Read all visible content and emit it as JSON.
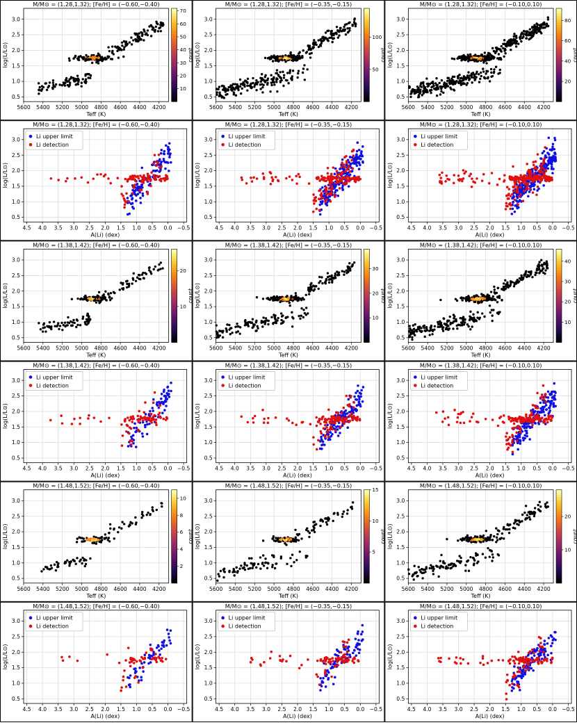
{
  "figure": {
    "rows": [
      {
        "kind": "hr",
        "mass": "1.28,1.32"
      },
      {
        "kind": "li",
        "mass": "1.28,1.32"
      },
      {
        "kind": "hr",
        "mass": "1.38,1.42"
      },
      {
        "kind": "li",
        "mass": "1.38,1.42"
      },
      {
        "kind": "hr",
        "mass": "1.48,1.52"
      },
      {
        "kind": "li",
        "mass": "1.48,1.52"
      }
    ],
    "metallicity_bins": [
      "-0.60,-0.40",
      "-0.35,-0.15",
      "-0.10,0.10"
    ],
    "title_template": "M/M⊙ = ({mass}); [Fe/H] = ({feh})",
    "ylabel": "log(L/L⊙)",
    "xlabel_teff": "Teff (K)",
    "xlabel_li": "A(Li) (dex)",
    "colorbar_label": "count",
    "legend": [
      "Li upper limit",
      "Li detection"
    ],
    "colors": {
      "upper_limit": "#1010e0",
      "detection": "#e01010",
      "hr_point": "#000000",
      "grid": "#d9d9d9"
    },
    "colormap": "inferno"
  },
  "chart_data": [
    {
      "type": "scatter",
      "panel": "r1c1",
      "title": "M/M⊙ = (1.28,1.32); [Fe/H] = (−0.60,−0.40)",
      "xlabel": "Teff (K)",
      "ylabel": "log(L/L⊙)",
      "xlim": [
        5600,
        4100
      ],
      "ylim": [
        0.35,
        3.35
      ],
      "x_ticks": [
        5600,
        5400,
        5200,
        5000,
        4800,
        4600,
        4400,
        4200
      ],
      "y_ticks": [
        0.5,
        1.0,
        1.5,
        2.0,
        2.5,
        3.0
      ],
      "colorbar": {
        "label": "count",
        "ticks": [
          10,
          20,
          30,
          40,
          50,
          60,
          70
        ],
        "max": 72
      }
    },
    {
      "type": "scatter",
      "panel": "r1c2",
      "title": "M/M⊙ = (1.28,1.32); [Fe/H] = (−0.35,−0.15)",
      "xlabel": "Teff (K)",
      "ylabel": "log(L/L⊙)",
      "xlim": [
        5600,
        4100
      ],
      "ylim": [
        0.35,
        3.35
      ],
      "x_ticks": [
        5600,
        5400,
        5200,
        5000,
        4800,
        4600,
        4400,
        4200
      ],
      "y_ticks": [
        0.5,
        1.0,
        1.5,
        2.0,
        2.5,
        3.0
      ],
      "colorbar": {
        "label": "count",
        "ticks": [
          50,
          100
        ],
        "max": 145
      }
    },
    {
      "type": "scatter",
      "panel": "r1c3",
      "title": "M/M⊙ = (1.28,1.32); [Fe/H] = (−0.10,0.10)",
      "xlabel": "Teff (K)",
      "ylabel": "log(L/L⊙)",
      "xlim": [
        5600,
        4100
      ],
      "ylim": [
        0.35,
        3.35
      ],
      "x_ticks": [
        5600,
        5400,
        5200,
        5000,
        4800,
        4600,
        4400,
        4200
      ],
      "y_ticks": [
        0.5,
        1.0,
        1.5,
        2.0,
        2.5,
        3.0
      ],
      "colorbar": {
        "label": "count",
        "ticks": [
          20,
          40,
          60,
          80
        ],
        "max": 92
      }
    },
    {
      "type": "scatter",
      "panel": "r2c1",
      "title": "M/M⊙ = (1.28,1.32); [Fe/H] = (−0.60,−0.40)",
      "xlabel": "A(Li) (dex)",
      "ylabel": "log(L/L⊙)",
      "xlim": [
        4.6,
        -0.6
      ],
      "ylim": [
        0.35,
        3.35
      ],
      "x_ticks": [
        4.5,
        4.0,
        3.5,
        3.0,
        2.5,
        2.0,
        1.5,
        1.0,
        0.5,
        0.0,
        -0.5
      ],
      "y_ticks": [
        0.5,
        1.0,
        1.5,
        2.0,
        2.5,
        3.0
      ],
      "legend": [
        "Li upper limit",
        "Li detection"
      ]
    },
    {
      "type": "scatter",
      "panel": "r2c2",
      "title": "M/M⊙ = (1.28,1.32); [Fe/H] = (−0.35,−0.15)",
      "xlabel": "A(Li) (dex)",
      "ylabel": "log(L/L⊙)",
      "xlim": [
        4.6,
        -0.6
      ],
      "ylim": [
        0.35,
        3.35
      ],
      "x_ticks": [
        4.5,
        4.0,
        3.5,
        3.0,
        2.5,
        2.0,
        1.5,
        1.0,
        0.5,
        0.0,
        -0.5
      ],
      "y_ticks": [
        0.5,
        1.0,
        1.5,
        2.0,
        2.5,
        3.0
      ],
      "legend": [
        "Li upper limit",
        "Li detection"
      ]
    },
    {
      "type": "scatter",
      "panel": "r2c3",
      "title": "M/M⊙ = (1.28,1.32); [Fe/H] = (−0.10,0.10)",
      "xlabel": "A(Li) (dex)",
      "ylabel": "log(L/L⊙)",
      "xlim": [
        4.6,
        -0.6
      ],
      "ylim": [
        0.35,
        3.35
      ],
      "x_ticks": [
        4.5,
        4.0,
        3.5,
        3.0,
        2.5,
        2.0,
        1.5,
        1.0,
        0.5,
        0.0,
        -0.5
      ],
      "y_ticks": [
        0.5,
        1.0,
        1.5,
        2.0,
        2.5,
        3.0
      ],
      "legend": [
        "Li upper limit",
        "Li detection"
      ]
    },
    {
      "type": "scatter",
      "panel": "r3c1",
      "title": "M/M⊙ = (1.38,1.42); [Fe/H] = (−0.60,−0.40)",
      "xlabel": "Teff (K)",
      "ylabel": "log(L/L⊙)",
      "xlim": [
        5600,
        4100
      ],
      "ylim": [
        0.35,
        3.35
      ],
      "x_ticks": [
        5600,
        5400,
        5200,
        5000,
        4800,
        4600,
        4400,
        4200
      ],
      "y_ticks": [
        0.5,
        1.0,
        1.5,
        2.0,
        2.5,
        3.0
      ],
      "colorbar": {
        "label": "count",
        "ticks": [
          10,
          20
        ],
        "max": 26
      }
    },
    {
      "type": "scatter",
      "panel": "r3c2",
      "title": "M/M⊙ = (1.38,1.42); [Fe/H] = (−0.35,−0.15)",
      "xlabel": "Teff (K)",
      "ylabel": "log(L/L⊙)",
      "xlim": [
        5600,
        4100
      ],
      "ylim": [
        0.35,
        3.35
      ],
      "x_ticks": [
        5600,
        5400,
        5200,
        5000,
        4800,
        4600,
        4400,
        4200
      ],
      "y_ticks": [
        0.5,
        1.0,
        1.5,
        2.0,
        2.5,
        3.0
      ],
      "colorbar": {
        "label": "count",
        "ticks": [
          10,
          20,
          30
        ],
        "max": 38
      }
    },
    {
      "type": "scatter",
      "panel": "r3c3",
      "title": "M/M⊙ = (1.38,1.42); [Fe/H] = (−0.10,0.10)",
      "xlabel": "Teff (K)",
      "ylabel": "log(L/L⊙)",
      "xlim": [
        5600,
        4100
      ],
      "ylim": [
        0.35,
        3.35
      ],
      "x_ticks": [
        5600,
        5400,
        5200,
        5000,
        4800,
        4600,
        4400,
        4200
      ],
      "y_ticks": [
        0.5,
        1.0,
        1.5,
        2.0,
        2.5,
        3.0
      ],
      "colorbar": {
        "label": "count",
        "ticks": [
          10,
          20,
          30,
          40
        ],
        "max": 46
      }
    },
    {
      "type": "scatter",
      "panel": "r4c1",
      "title": "M/M⊙ = (1.38,1.42); [Fe/H] = (−0.60,−0.40)",
      "xlabel": "A(Li) (dex)",
      "ylabel": "log(L/L⊙)",
      "xlim": [
        4.6,
        -0.6
      ],
      "ylim": [
        0.35,
        3.35
      ],
      "x_ticks": [
        4.5,
        4.0,
        3.5,
        3.0,
        2.5,
        2.0,
        1.5,
        1.0,
        0.5,
        0.0,
        -0.5
      ],
      "y_ticks": [
        0.5,
        1.0,
        1.5,
        2.0,
        2.5,
        3.0
      ],
      "legend": [
        "Li upper limit",
        "Li detection"
      ]
    },
    {
      "type": "scatter",
      "panel": "r4c2",
      "title": "M/M⊙ = (1.38,1.42); [Fe/H] = (−0.35,−0.15)",
      "xlabel": "A(Li) (dex)",
      "ylabel": "log(L/L⊙)",
      "xlim": [
        4.6,
        -0.6
      ],
      "ylim": [
        0.35,
        3.35
      ],
      "x_ticks": [
        4.5,
        4.0,
        3.5,
        3.0,
        2.5,
        2.0,
        1.5,
        1.0,
        0.5,
        0.0,
        -0.5
      ],
      "y_ticks": [
        0.5,
        1.0,
        1.5,
        2.0,
        2.5,
        3.0
      ],
      "legend": [
        "Li upper limit",
        "Li detection"
      ]
    },
    {
      "type": "scatter",
      "panel": "r4c3",
      "title": "M/M⊙ = (1.38,1.42); [Fe/H] = (−0.10,0.10)",
      "xlabel": "A(Li) (dex)",
      "ylabel": "log(L/L⊙)",
      "xlim": [
        4.6,
        -0.6
      ],
      "ylim": [
        0.35,
        3.35
      ],
      "x_ticks": [
        4.5,
        4.0,
        3.5,
        3.0,
        2.5,
        2.0,
        1.5,
        1.0,
        0.5,
        0.0,
        -0.5
      ],
      "y_ticks": [
        0.5,
        1.0,
        1.5,
        2.0,
        2.5,
        3.0
      ],
      "legend": [
        "Li upper limit",
        "Li detection"
      ]
    },
    {
      "type": "scatter",
      "panel": "r5c1",
      "title": "M/M⊙ = (1.48,1.52); [Fe/H] = (−0.60,−0.40)",
      "xlabel": "Teff (K)",
      "ylabel": "log(L/L⊙)",
      "xlim": [
        5600,
        4100
      ],
      "ylim": [
        0.35,
        3.35
      ],
      "x_ticks": [
        5600,
        5400,
        5200,
        5000,
        4800,
        4600,
        4400,
        4200
      ],
      "y_ticks": [
        0.5,
        1.0,
        1.5,
        2.0,
        2.5,
        3.0
      ],
      "colorbar": {
        "label": "count",
        "ticks": [
          2,
          4,
          6,
          8,
          10
        ],
        "max": 11
      }
    },
    {
      "type": "scatter",
      "panel": "r5c2",
      "title": "M/M⊙ = (1.48,1.52); [Fe/H] = (−0.35,−0.15)",
      "xlabel": "Teff (K)",
      "ylabel": "log(L/L⊙)",
      "xlim": [
        5600,
        4100
      ],
      "ylim": [
        0.35,
        3.35
      ],
      "x_ticks": [
        5600,
        5400,
        5200,
        5000,
        4800,
        4600,
        4400,
        4200
      ],
      "y_ticks": [
        0.5,
        1.0,
        1.5,
        2.0,
        2.5,
        3.0
      ],
      "colorbar": {
        "label": "count",
        "ticks": [
          5,
          10,
          15
        ],
        "max": 15
      }
    },
    {
      "type": "scatter",
      "panel": "r5c3",
      "title": "M/M⊙ = (1.48,1.52); [Fe/H] = (−0.10,0.10)",
      "xlabel": "Teff (K)",
      "ylabel": "log(L/L⊙)",
      "xlim": [
        5600,
        4100
      ],
      "ylim": [
        0.35,
        3.35
      ],
      "x_ticks": [
        5600,
        5400,
        5200,
        5000,
        4800,
        4600,
        4400,
        4200
      ],
      "y_ticks": [
        0.5,
        1.0,
        1.5,
        2.0,
        2.5,
        3.0
      ],
      "colorbar": {
        "label": "count",
        "ticks": [
          10,
          20
        ],
        "max": 28
      }
    },
    {
      "type": "scatter",
      "panel": "r6c1",
      "title": "M/M⊙ = (1.48,1.52); [Fe/H] = (−0.60,−0.40)",
      "xlabel": "A(Li) (dex)",
      "ylabel": "log(L/L⊙)",
      "xlim": [
        4.6,
        -0.6
      ],
      "ylim": [
        0.35,
        3.35
      ],
      "x_ticks": [
        4.5,
        4.0,
        3.5,
        3.0,
        2.5,
        2.0,
        1.5,
        1.0,
        0.5,
        0.0,
        -0.5
      ],
      "y_ticks": [
        0.5,
        1.0,
        1.5,
        2.0,
        2.5,
        3.0
      ],
      "legend": [
        "Li upper limit",
        "Li detection"
      ]
    },
    {
      "type": "scatter",
      "panel": "r6c2",
      "title": "M/M⊙ = (1.48,1.52); [Fe/H] = (−0.35,−0.15)",
      "xlabel": "A(Li) (dex)",
      "ylabel": "log(L/L⊙)",
      "xlim": [
        4.6,
        -0.6
      ],
      "ylim": [
        0.35,
        3.35
      ],
      "x_ticks": [
        4.5,
        4.0,
        3.5,
        3.0,
        2.5,
        2.0,
        1.5,
        1.0,
        0.5,
        0.0,
        -0.5
      ],
      "y_ticks": [
        0.5,
        1.0,
        1.5,
        2.0,
        2.5,
        3.0
      ],
      "legend": [
        "Li upper limit",
        "Li detection"
      ]
    },
    {
      "type": "scatter",
      "panel": "r6c3",
      "title": "M/M⊙ = (1.48,1.52); [Fe/H] = (−0.10,0.10)",
      "xlabel": "A(Li) (dex)",
      "ylabel": "log(L/L⊙)",
      "xlim": [
        4.6,
        -0.6
      ],
      "ylim": [
        0.35,
        3.35
      ],
      "x_ticks": [
        4.5,
        4.0,
        3.5,
        3.0,
        2.5,
        2.0,
        1.5,
        1.0,
        0.5,
        0.0,
        -0.5
      ],
      "y_ticks": [
        0.5,
        1.0,
        1.5,
        2.0,
        2.5,
        3.0
      ],
      "legend": [
        "Li upper limit",
        "Li detection"
      ]
    }
  ]
}
